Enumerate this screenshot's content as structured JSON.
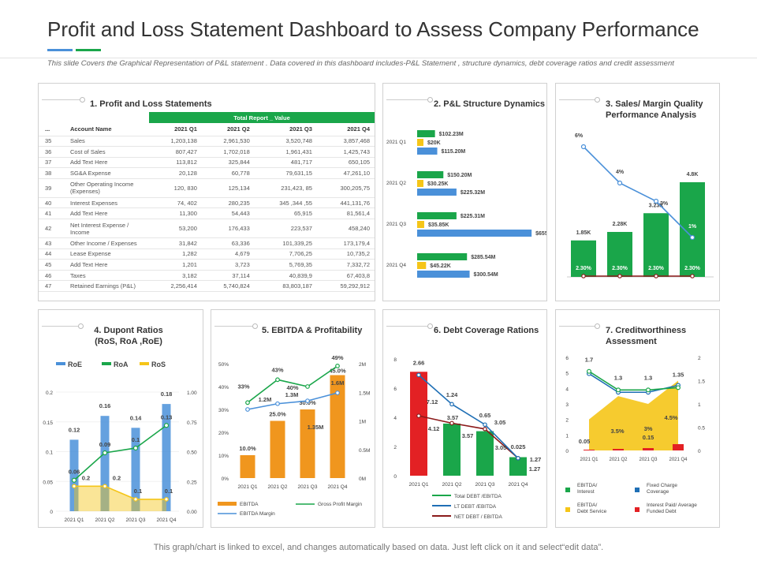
{
  "page": {
    "title": "Profit and Loss Statement Dashboard to Assess Company Performance",
    "subtitle": "This slide Covers the Graphical Representation of P&L statement . Data covered in this dashboard includes-P&L Statement , structure dynamics, debt coverage ratios and credit assessment",
    "footer": "This graph/chart is linked to excel, and changes automatically based on data. Just left click on it and select“edit data”.",
    "accent_colors": [
      "#4a90d9",
      "#1aa64a"
    ]
  },
  "colors": {
    "green": "#1aa64a",
    "blue": "#4a90d9",
    "yellow": "#f5c518",
    "red": "#e32124",
    "orange": "#f0961e",
    "dark_blue": "#1f6fb5",
    "dark_red": "#8b1a1a"
  },
  "p1": {
    "title": "1. Profit and Loss Statements",
    "super_header": "Total Report _ Value",
    "header": [
      "...",
      "Account Name",
      "2021 Q1",
      "2021 Q2",
      "2021 Q3",
      "2021 Q4"
    ],
    "rows": [
      [
        "35",
        "Sales",
        "1,203,138",
        "2,961,530",
        "3,520,748",
        "3,857,468"
      ],
      [
        "36",
        "Cost of Sales",
        "807,427",
        "1,702,018",
        "1,961,431",
        "1,425,743"
      ],
      [
        "37",
        "Add Text Here",
        "113,812",
        "325,844",
        "481,717",
        "650,105"
      ],
      [
        "38",
        "SG&A Expense",
        "20,128",
        "60,778",
        "79,631,15",
        "47,261,10"
      ],
      [
        "39",
        "Other Operating Income (Expenses)",
        "120, 830",
        "125,134",
        "231,423, 85",
        "300,205,75"
      ],
      [
        "40",
        "Interest Expenses",
        "74, 402",
        "280,235",
        "345 ,344 ,55",
        "441,131,76"
      ],
      [
        "41",
        "Add Text Here",
        "11,300",
        "54,443",
        "65,915",
        "81,561,4"
      ],
      [
        "42",
        "Net Interest Expense / Income",
        "53,200",
        "176,433",
        "223,537",
        "458,240"
      ],
      [
        "43",
        "Other Income / Expenses",
        "31,842",
        "63,336",
        "101,339,25",
        "173,179,4"
      ],
      [
        "44",
        "Lease Expense",
        "1,282",
        "4,679",
        "7,706,25",
        "10,735,2"
      ],
      [
        "45",
        "Add Text Here",
        "1,201",
        "3,723",
        "5,769,35",
        "7,332,72"
      ],
      [
        "46",
        "Taxes",
        "3,182",
        "37,114",
        "40,839,9",
        "67,403,8"
      ],
      [
        "47",
        "Retained Earnings (P&L)",
        "2,256,414",
        "5,740,824",
        "83,803,187",
        "59,292,912"
      ]
    ]
  },
  "chart_data": [
    {
      "id": "pl_structure",
      "type": "bar",
      "orientation": "horizontal",
      "title": "2. P&L Structure Dynamics",
      "categories": [
        "2021 Q1",
        "2021 Q2",
        "2021 Q3",
        "2021 Q4"
      ],
      "series": [
        {
          "values": [
            102.23,
            150.2,
            225.31,
            285.54
          ],
          "labels": [
            "$102.23M",
            "$150.20M",
            "$225.31M",
            "$285.54M"
          ],
          "color": "#1aa64a"
        },
        {
          "values": [
            20,
            30.25,
            35.85,
            45.22
          ],
          "labels": [
            "$20K",
            "$30.25K",
            "$35.85K",
            "$45.22K"
          ],
          "color": "#f5c518"
        },
        {
          "values": [
            115.2,
            225.32,
            655.54,
            300.54
          ],
          "labels": [
            "$115.20M",
            "$225.32M",
            "$655.54M",
            "$300.54M"
          ],
          "color": "#4a90d9"
        }
      ]
    },
    {
      "id": "sales_margin",
      "type": "bar",
      "title": "3. Sales/ Margin Quality Performance Analysis",
      "categories": [
        "Q1",
        "Q2",
        "Q3",
        "Q4"
      ],
      "bars": {
        "values": [
          1.85,
          2.28,
          3.23,
          4.8
        ],
        "labels": [
          "1.85K",
          "2.28K",
          "3.23K",
          "4.8K"
        ],
        "inner_labels": [
          "2.30%",
          "2.30%",
          "2.30%",
          "2.30%"
        ],
        "color": "#1aa64a"
      },
      "line": {
        "values": [
          6,
          4,
          3,
          1
        ],
        "labels": [
          "6%",
          "4%",
          "3%",
          "1%"
        ],
        "color": "#4a90d9"
      },
      "line2": {
        "color": "#8b1a1a"
      }
    },
    {
      "id": "dupont",
      "type": "bar",
      "title": "4. Dupont Ratios (RoS, RoA ,RoE)",
      "legend": [
        "RoE",
        "RoA",
        "RoS"
      ],
      "categories": [
        "2021 Q1",
        "2021 Q2",
        "2021 Q3",
        "2021 Q4"
      ],
      "left_ticks": [
        "0",
        "0.05",
        "0.1",
        "0.15",
        "0.2"
      ],
      "right_ticks": [
        "0.00",
        "0.25",
        "0.50",
        "0.75",
        "1.00"
      ],
      "ylim": [
        0,
        0.2
      ],
      "y2lim": [
        0,
        1
      ],
      "RoE": {
        "values": [
          0.12,
          0.16,
          0.14,
          0.18
        ],
        "labels": [
          "0.12",
          "0.16",
          "0.14",
          "0.18"
        ],
        "color": "#4a90d9"
      },
      "RoA": {
        "values": [
          0.06,
          0.09,
          0.1,
          0.13
        ],
        "labels": [
          "0.06",
          "0.09",
          "0.1",
          "0.13"
        ],
        "color": "#1aa64a"
      },
      "RoS": {
        "values": [
          0.2,
          0.2,
          0.1,
          0.1
        ],
        "labels": [
          "0.2",
          "0.2",
          "0.1",
          "0.1"
        ],
        "color": "#f5c518"
      }
    },
    {
      "id": "ebitda",
      "type": "bar",
      "title": "5. EBITDA & Profitability",
      "categories": [
        "2021 Q1",
        "2021 Q2",
        "2021 Q3",
        "2021 Q4"
      ],
      "left_ticks": [
        "0%",
        "10%",
        "20%",
        "30%",
        "40%",
        "50%"
      ],
      "right_ticks": [
        "0M",
        "0.5M",
        "1M",
        "1.5M",
        "2M"
      ],
      "legend": [
        "EBITDA",
        "Gross Profit Margin",
        "EBITDA Margin"
      ],
      "EBITDA": {
        "values": [
          10,
          25,
          30,
          45
        ],
        "labels": [
          "10.0%",
          "25.0%",
          "30.0%",
          "45.0%"
        ],
        "color": "#f0961e"
      },
      "gross": {
        "values": [
          33,
          43,
          40,
          49
        ],
        "labels": [
          "33%",
          "43%",
          "40%",
          "49%"
        ],
        "color": "#1aa64a"
      },
      "margin": {
        "values": [
          1.2,
          1.3,
          1.35,
          1.6
        ],
        "labels": [
          "1.2M",
          "1.3M",
          "1.35M",
          "1.6M"
        ],
        "color": "#4a90d9"
      }
    },
    {
      "id": "debt",
      "type": "bar",
      "title": "6. Debt Coverage Rations",
      "categories": [
        "2021 Q1",
        "2021 Q2",
        "2021 Q3",
        "2021 Q4"
      ],
      "left_ticks": [
        "0",
        "2",
        "4",
        "6",
        "8"
      ],
      "ylim": [
        0,
        8
      ],
      "legend": [
        "Total DEBT /EBITDA",
        "LT DEBT /EBITDA",
        "NET DEBT / EBITDA"
      ],
      "bars": {
        "values": [
          7.12,
          3.57,
          3.05,
          1.27
        ],
        "labels": [
          "7.12",
          "3.57",
          "3.05",
          "1.27"
        ],
        "color": "#1aa64a",
        "first_color": "#e32124"
      },
      "lt": {
        "values": [
          6.9,
          5.0,
          3.05,
          1.27
        ],
        "labels": [
          "",
          "1.24",
          "3.05",
          "1.27"
        ],
        "color": "#1f6fb5"
      },
      "net": {
        "values": [
          4.12,
          3.57,
          3.05,
          1.27
        ],
        "labels": [
          "4.12",
          "3.57",
          "0.65",
          "0.025"
        ],
        "color": "#8b1a1a"
      },
      "top_labels": [
        "2.66",
        "1.24",
        "0.65",
        "0.025"
      ]
    },
    {
      "id": "credit",
      "type": "area",
      "title": "7. Creditworthiness Assessment",
      "categories": [
        "2021 Q1",
        "2021 Q2",
        "2021 Q3",
        "2021 Q4"
      ],
      "left_ticks": [
        "0",
        "1",
        "2",
        "3",
        "4",
        "5",
        "6"
      ],
      "right_ticks": [
        "0",
        "0.5",
        "1",
        "1.5",
        "2"
      ],
      "legend": [
        "EBITDA/ Interest",
        "Fixed Charge Coverage",
        "EBITDA/ Debt Service",
        "Interest Paid/ Average Funded Debt"
      ],
      "green": {
        "values": [
          1.7,
          1.3,
          1.3,
          1.35
        ],
        "labels": [
          "1.7",
          "1.3",
          "1.3",
          "1.35"
        ],
        "color": "#1aa64a"
      },
      "blue": {
        "values": [
          1.65,
          1.25,
          1.25,
          1.4
        ],
        "color": "#1f6fb5"
      },
      "yellow": {
        "values": [
          0.05,
          3.5,
          3,
          4.5
        ],
        "labels": [
          "0.05",
          "3.5%",
          "3%",
          "4.5%"
        ],
        "color": "#f5c518"
      },
      "red": {
        "values": [
          0.05,
          0.08,
          0.15,
          0.4
        ],
        "labels": [
          "",
          "0.08",
          "0.15",
          ""
        ],
        "color": "#e32124"
      }
    }
  ]
}
